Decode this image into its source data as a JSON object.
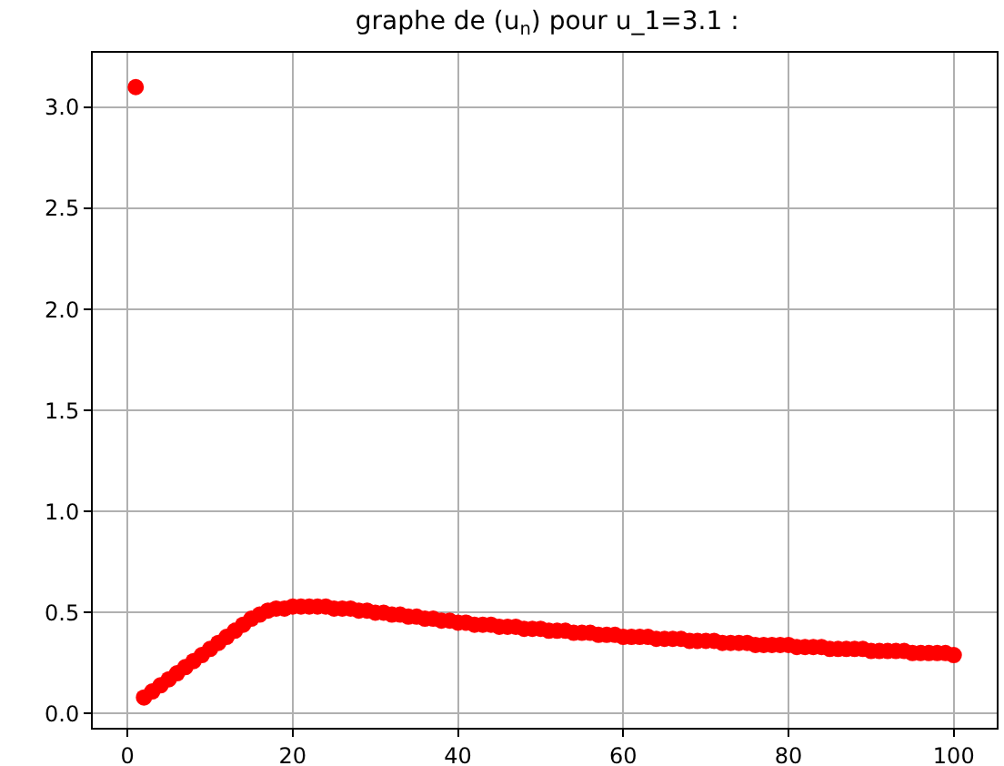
{
  "chart_data": {
    "type": "scatter",
    "title": "graphe de (u$_{n}$) pour u_1=3.1 :",
    "x": [
      1,
      2,
      3,
      4,
      5,
      6,
      7,
      8,
      9,
      10,
      11,
      12,
      13,
      14,
      15,
      16,
      17,
      18,
      19,
      20,
      21,
      22,
      23,
      24,
      25,
      26,
      27,
      28,
      29,
      30,
      31,
      32,
      33,
      34,
      35,
      36,
      37,
      38,
      39,
      40,
      41,
      42,
      43,
      44,
      45,
      46,
      47,
      48,
      49,
      50,
      51,
      52,
      53,
      54,
      55,
      56,
      57,
      58,
      59,
      60,
      61,
      62,
      63,
      64,
      65,
      66,
      67,
      68,
      69,
      70,
      71,
      72,
      73,
      74,
      75,
      76,
      77,
      78,
      79,
      80,
      81,
      82,
      83,
      84,
      85,
      86,
      87,
      88,
      89,
      90,
      91,
      92,
      93,
      94,
      95,
      96,
      97,
      98,
      99,
      100
    ],
    "series": [
      {
        "color": "#ff0000",
        "values": [
          3.1,
          0.08,
          0.11,
          0.14,
          0.17,
          0.2,
          0.23,
          0.26,
          0.29,
          0.32,
          0.35,
          0.38,
          0.41,
          0.44,
          0.47,
          0.49,
          0.51,
          0.52,
          0.52,
          0.53,
          0.53,
          0.53,
          0.53,
          0.53,
          0.52,
          0.52,
          0.52,
          0.51,
          0.51,
          0.5,
          0.5,
          0.49,
          0.49,
          0.48,
          0.48,
          0.47,
          0.47,
          0.46,
          0.46,
          0.45,
          0.45,
          0.44,
          0.44,
          0.44,
          0.43,
          0.43,
          0.43,
          0.42,
          0.42,
          0.42,
          0.41,
          0.41,
          0.41,
          0.4,
          0.4,
          0.4,
          0.39,
          0.39,
          0.39,
          0.38,
          0.38,
          0.38,
          0.38,
          0.37,
          0.37,
          0.37,
          0.37,
          0.36,
          0.36,
          0.36,
          0.36,
          0.35,
          0.35,
          0.35,
          0.35,
          0.34,
          0.34,
          0.34,
          0.34,
          0.34,
          0.33,
          0.33,
          0.33,
          0.33,
          0.32,
          0.32,
          0.32,
          0.32,
          0.32,
          0.31,
          0.31,
          0.31,
          0.31,
          0.31,
          0.3,
          0.3,
          0.3,
          0.3,
          0.3,
          0.29
        ]
      }
    ],
    "xlim": [
      -4.2,
      105.2
    ],
    "xticks": [
      0,
      20,
      40,
      60,
      80,
      100
    ],
    "ylim": [
      -0.07,
      3.27
    ],
    "yticks": [
      {
        "value": 0,
        "label": "0.0"
      },
      {
        "value": 0.5,
        "label": "0.5"
      },
      {
        "value": 1,
        "label": "1.0"
      },
      {
        "value": 1.5,
        "label": "1.5"
      },
      {
        "value": 2,
        "label": "2.0"
      },
      {
        "value": 2.5,
        "label": "2.5"
      },
      {
        "value": 3,
        "label": "3.0"
      }
    ],
    "grid": true,
    "marker": "circle"
  }
}
